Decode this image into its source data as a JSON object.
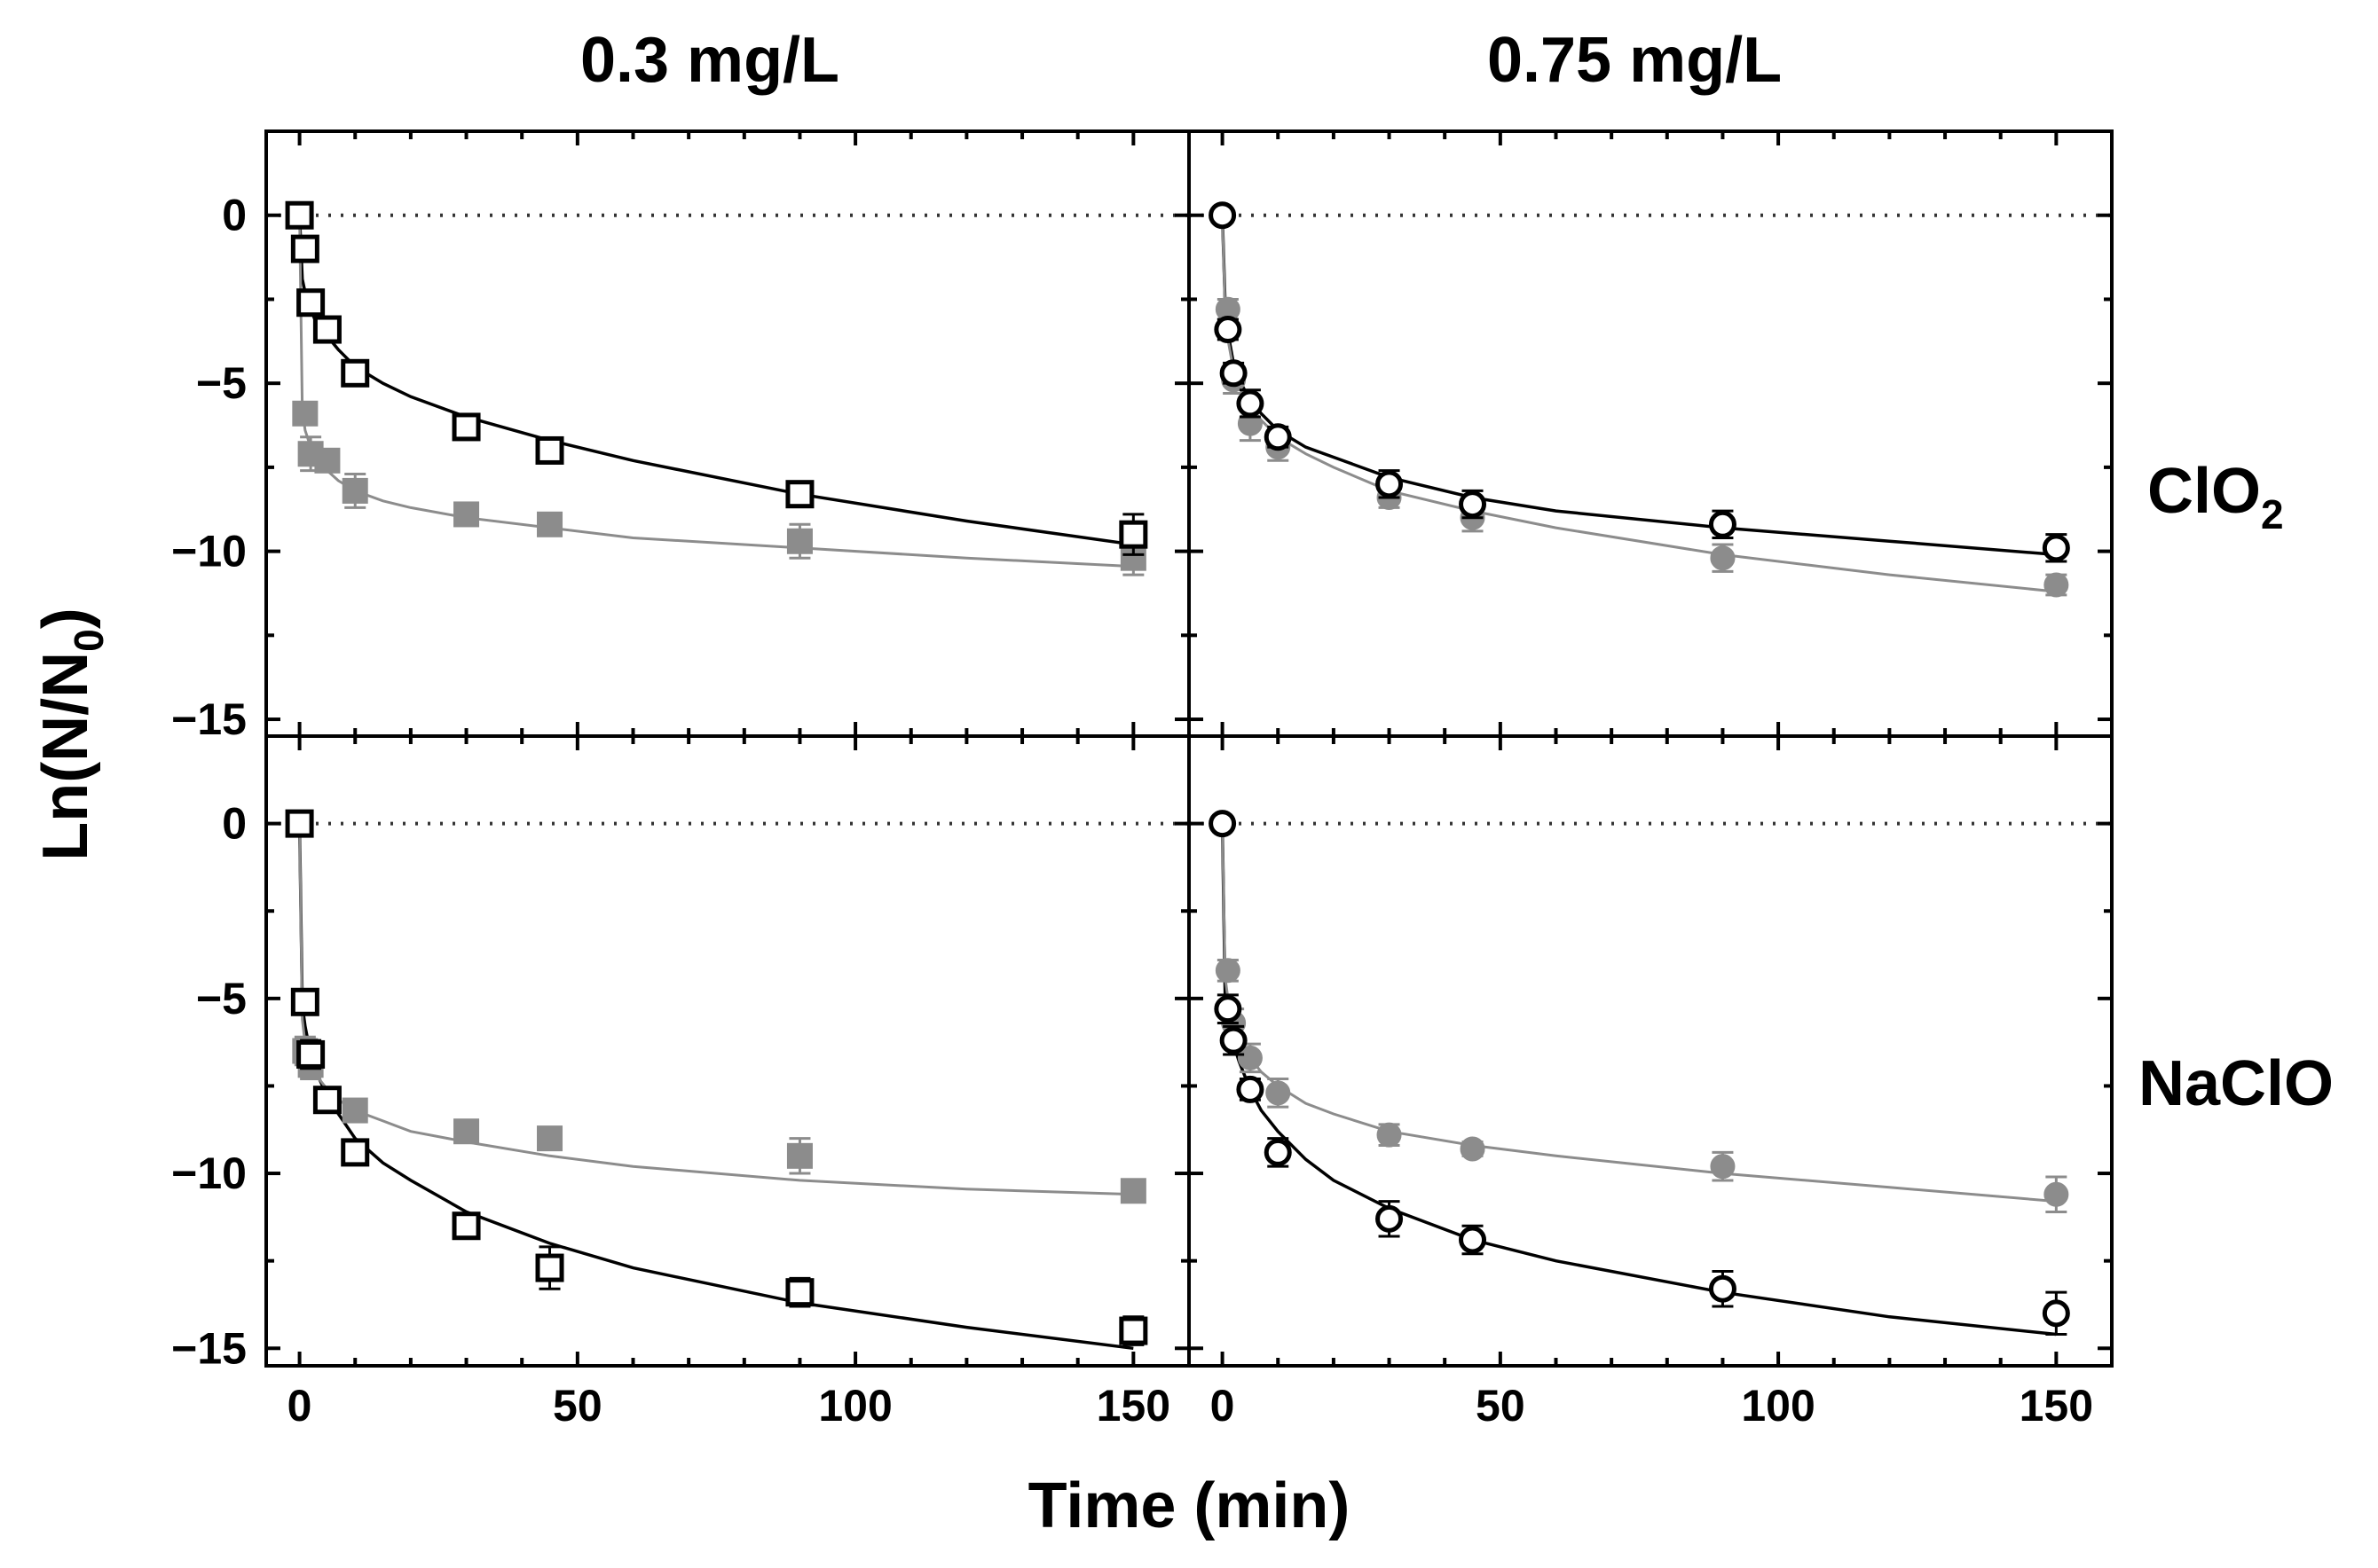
{
  "chart_data": {
    "type": "scatter",
    "column_titles": [
      "0.3 mg/L",
      "0.75 mg/L"
    ],
    "row_labels": [
      {
        "main": "ClO",
        "sub": "2"
      },
      {
        "main": "NaClO",
        "sub": ""
      }
    ],
    "xlabel": "Time (min)",
    "ylabel": {
      "prefix": "Ln(N/N",
      "sub": "0",
      "suffix": ")"
    },
    "xlim": [
      -6,
      160
    ],
    "xticks": [
      0,
      50,
      100,
      150
    ],
    "ylim": [
      -15.5,
      2.5
    ],
    "yticks": [
      {
        "value": 0,
        "label": "0"
      },
      {
        "value": -5,
        "label": "−5"
      },
      {
        "value": -10,
        "label": "−10"
      },
      {
        "value": -15,
        "label": "−15"
      }
    ],
    "reference_line_y": 0,
    "colors": {
      "open": "#000000",
      "filled": "#8c8c8c",
      "axis": "#000000"
    },
    "panels": [
      {
        "row": 0,
        "col": 0,
        "marker": "square",
        "series": [
          {
            "name": "open",
            "x": [
              0,
              1,
              2,
              5,
              10,
              30,
              45,
              90,
              150
            ],
            "y": [
              0,
              -1.0,
              -2.6,
              -3.4,
              -4.7,
              -6.3,
              -7.0,
              -8.3,
              -9.5
            ],
            "err": [
              0.2,
              0.3,
              0.2,
              0.3,
              0.2,
              0.3,
              0.3,
              0.3,
              0.6
            ]
          },
          {
            "name": "filled",
            "x": [
              1,
              2,
              5,
              10,
              30,
              45,
              90,
              150
            ],
            "y": [
              -5.9,
              -7.1,
              -7.3,
              -8.2,
              -8.9,
              -9.2,
              -9.7,
              -10.2
            ],
            "err": [
              0.3,
              0.5,
              0.3,
              0.5,
              0.2,
              0.2,
              0.5,
              0.5
            ]
          }
        ],
        "fits": [
          {
            "name": "open",
            "x": [
              0,
              0.5,
              1,
              2,
              3,
              5,
              7,
              10,
              15,
              20,
              30,
              45,
              60,
              90,
              120,
              150
            ],
            "y": [
              0,
              -1.9,
              -2.3,
              -2.8,
              -3.2,
              -3.6,
              -4.0,
              -4.5,
              -5.0,
              -5.4,
              -6.0,
              -6.7,
              -7.3,
              -8.3,
              -9.1,
              -9.8
            ]
          },
          {
            "name": "filled",
            "x": [
              0,
              0.5,
              1,
              2,
              3,
              5,
              7,
              10,
              15,
              20,
              30,
              45,
              60,
              90,
              120,
              150
            ],
            "y": [
              0,
              -5.8,
              -6.4,
              -6.9,
              -7.2,
              -7.6,
              -7.9,
              -8.2,
              -8.5,
              -8.7,
              -9.0,
              -9.3,
              -9.6,
              -9.9,
              -10.2,
              -10.45
            ]
          }
        ]
      },
      {
        "row": 0,
        "col": 1,
        "marker": "circle",
        "series": [
          {
            "name": "open",
            "x": [
              0,
              1,
              2,
              5,
              10,
              30,
              45,
              90,
              150
            ],
            "y": [
              0,
              -3.4,
              -4.7,
              -5.6,
              -6.6,
              -8.0,
              -8.6,
              -9.2,
              -9.9
            ],
            "err": [
              0.2,
              0.3,
              0.3,
              0.4,
              0.3,
              0.4,
              0.4,
              0.4,
              0.4
            ]
          },
          {
            "name": "filled",
            "x": [
              1,
              2,
              5,
              10,
              30,
              45,
              90,
              150
            ],
            "y": [
              -2.8,
              -4.9,
              -6.2,
              -6.9,
              -8.4,
              -9.0,
              -10.2,
              -11.0
            ],
            "err": [
              0.3,
              0.4,
              0.5,
              0.4,
              0.3,
              0.4,
              0.4,
              0.3
            ]
          }
        ],
        "fits": [
          {
            "name": "open",
            "x": [
              0,
              0.5,
              1,
              2,
              3,
              5,
              7,
              10,
              15,
              20,
              30,
              45,
              60,
              90,
              120,
              150
            ],
            "y": [
              0,
              -2.6,
              -3.5,
              -4.4,
              -4.9,
              -5.5,
              -5.9,
              -6.4,
              -6.9,
              -7.2,
              -7.8,
              -8.4,
              -8.8,
              -9.3,
              -9.7,
              -10.1
            ]
          },
          {
            "name": "filled",
            "x": [
              0,
              0.5,
              1,
              2,
              3,
              5,
              7,
              10,
              15,
              20,
              30,
              45,
              60,
              90,
              120,
              150
            ],
            "y": [
              0,
              -2.8,
              -3.7,
              -4.6,
              -5.1,
              -5.7,
              -6.1,
              -6.6,
              -7.1,
              -7.5,
              -8.2,
              -8.8,
              -9.3,
              -10.1,
              -10.7,
              -11.2
            ]
          }
        ]
      },
      {
        "row": 1,
        "col": 0,
        "marker": "square",
        "series": [
          {
            "name": "open",
            "x": [
              0,
              1,
              2,
              5,
              10,
              30,
              45,
              90,
              150
            ],
            "y": [
              0,
              -5.1,
              -6.6,
              -7.9,
              -9.4,
              -11.5,
              -12.7,
              -13.4,
              -14.5
            ],
            "err": [
              0.2,
              0.3,
              0.4,
              0.3,
              0.3,
              0.3,
              0.6,
              0.4,
              0.4
            ]
          },
          {
            "name": "filled",
            "x": [
              1,
              2,
              5,
              10,
              30,
              45,
              90,
              150
            ],
            "y": [
              -6.5,
              -6.9,
              -7.9,
              -8.2,
              -8.8,
              -9.0,
              -9.5,
              -10.5
            ],
            "err": [
              0.4,
              0.4,
              0.3,
              0.3,
              0.3,
              0.2,
              0.5,
              0.3
            ]
          }
        ],
        "fits": [
          {
            "name": "open",
            "x": [
              0,
              0.5,
              1,
              2,
              3,
              5,
              7,
              10,
              15,
              20,
              30,
              45,
              60,
              90,
              120,
              150
            ],
            "y": [
              0,
              -5.2,
              -5.8,
              -6.6,
              -7.1,
              -7.8,
              -8.3,
              -9.0,
              -9.7,
              -10.2,
              -11.1,
              -12.0,
              -12.7,
              -13.7,
              -14.4,
              -15.0
            ]
          },
          {
            "name": "filled",
            "x": [
              0,
              0.5,
              1,
              2,
              3,
              5,
              7,
              10,
              15,
              20,
              30,
              45,
              60,
              90,
              120,
              150
            ],
            "y": [
              0,
              -5.6,
              -6.3,
              -6.9,
              -7.2,
              -7.6,
              -7.9,
              -8.2,
              -8.5,
              -8.8,
              -9.1,
              -9.5,
              -9.8,
              -10.2,
              -10.45,
              -10.6
            ]
          }
        ]
      },
      {
        "row": 1,
        "col": 1,
        "marker": "circle",
        "series": [
          {
            "name": "open",
            "x": [
              0,
              1,
              2,
              5,
              10,
              30,
              45,
              90,
              150
            ],
            "y": [
              0,
              -5.3,
              -6.2,
              -7.6,
              -9.4,
              -11.3,
              -11.9,
              -13.3,
              -14.0
            ],
            "err": [
              0.2,
              0.4,
              0.4,
              0.3,
              0.4,
              0.5,
              0.4,
              0.5,
              0.6
            ]
          },
          {
            "name": "filled",
            "x": [
              1,
              2,
              5,
              10,
              30,
              45,
              90,
              150
            ],
            "y": [
              -4.2,
              -5.7,
              -6.7,
              -7.7,
              -8.9,
              -9.3,
              -9.8,
              -10.6
            ],
            "err": [
              0.3,
              0.4,
              0.4,
              0.4,
              0.3,
              0.2,
              0.4,
              0.5
            ]
          }
        ],
        "fits": [
          {
            "name": "open",
            "x": [
              0,
              0.5,
              1,
              2,
              3,
              5,
              7,
              10,
              15,
              20,
              30,
              45,
              60,
              90,
              120,
              150
            ],
            "y": [
              0,
              -4.9,
              -5.5,
              -6.3,
              -6.8,
              -7.6,
              -8.2,
              -8.8,
              -9.6,
              -10.2,
              -11.0,
              -11.9,
              -12.5,
              -13.4,
              -14.1,
              -14.6
            ]
          },
          {
            "name": "filled",
            "x": [
              0,
              0.5,
              1,
              2,
              3,
              5,
              7,
              10,
              15,
              20,
              30,
              45,
              60,
              90,
              120,
              150
            ],
            "y": [
              0,
              -4.4,
              -5.0,
              -5.7,
              -6.1,
              -6.7,
              -7.1,
              -7.5,
              -8.0,
              -8.3,
              -8.8,
              -9.2,
              -9.5,
              -10.0,
              -10.4,
              -10.8
            ]
          }
        ]
      }
    ]
  }
}
